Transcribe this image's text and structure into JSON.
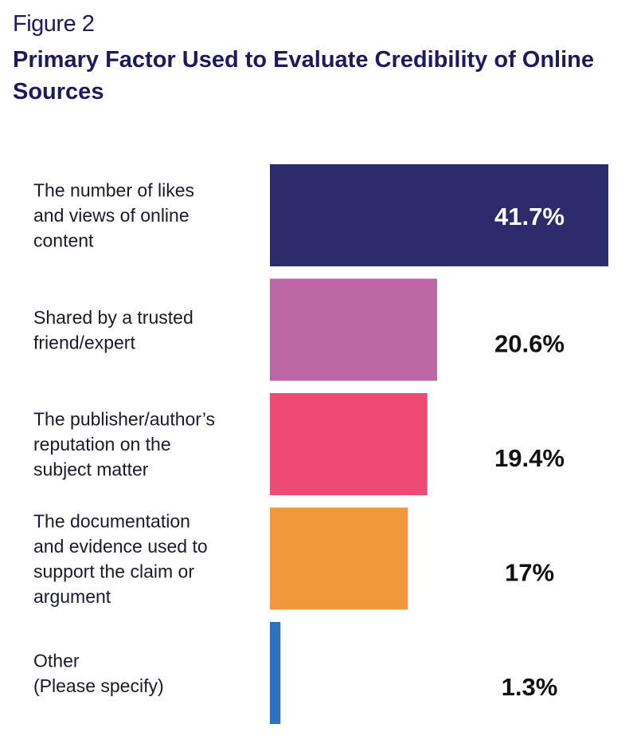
{
  "figure_label": "Figure 2",
  "chart_data": {
    "type": "bar",
    "orientation": "horizontal",
    "title": "Primary Factor Used to Evaluate Credibility of Online Sources",
    "categories": [
      "The number of likes and views of online content",
      "Shared by a trusted friend/expert",
      "The publisher/author’s reputation on the subject matter",
      "The documentation and evidence used to support the claim or argument",
      "Other (Please specify)"
    ],
    "category_lines": [
      [
        "The number of likes",
        "and views of online",
        "content"
      ],
      [
        "Shared by a trusted",
        "friend/expert"
      ],
      [
        "The publisher/author’s",
        "reputation on the",
        "subject matter"
      ],
      [
        "The documentation",
        "and evidence used to",
        "support the claim or",
        "argument"
      ],
      [
        "Other",
        "(Please specify)"
      ]
    ],
    "values": [
      41.7,
      20.6,
      19.4,
      17,
      1.3
    ],
    "data_labels": [
      "41.7%",
      "20.6%",
      "19.4%",
      "17%",
      "1.3%"
    ],
    "colors": [
      "#2d2b6b",
      "#bd66a6",
      "#ee4a73",
      "#f2983c",
      "#2b73c1"
    ],
    "xlim": [
      0,
      41.7
    ],
    "xlabel": "",
    "ylabel": "",
    "grid": false
  }
}
